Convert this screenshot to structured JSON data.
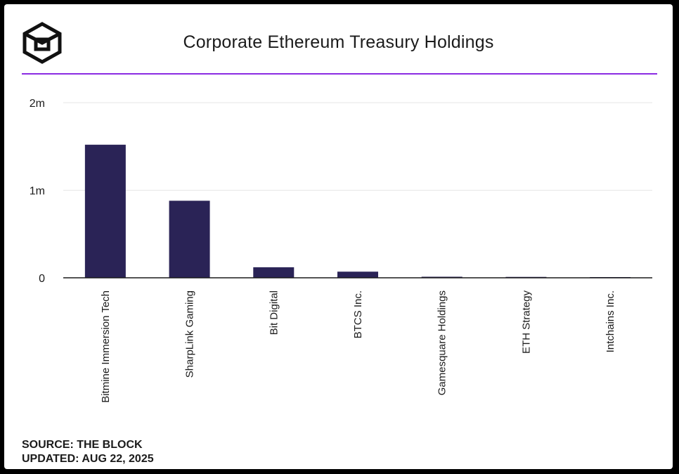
{
  "title": "Corporate Ethereum Treasury Holdings",
  "footer": {
    "source": "SOURCE: THE BLOCK",
    "updated": "UPDATED: AUG 22, 2025"
  },
  "colors": {
    "bar": "#2a2356",
    "accent_line": "#8a2be2",
    "grid": "#e6e6e6",
    "axis": "#1b1b1b",
    "text": "#1b1b1b",
    "background": "#ffffff"
  },
  "logo_icon": "the-block-cube-logo-icon",
  "chart_data": {
    "type": "bar",
    "categories": [
      "Bitmine Immersion Tech",
      "SharpLink Gaming",
      "Bit Digital",
      "BTCS Inc.",
      "Gamesquare Holdings",
      "ETH Strategy",
      "Intchains Inc."
    ],
    "values": [
      1520000,
      880000,
      120000,
      70000,
      12000,
      10000,
      8000
    ],
    "yticks": [
      0,
      1000000,
      2000000
    ],
    "ytick_labels": [
      "0",
      "1m",
      "2m"
    ],
    "ylim": [
      0,
      2000000
    ],
    "grid": true,
    "legend": "none"
  }
}
